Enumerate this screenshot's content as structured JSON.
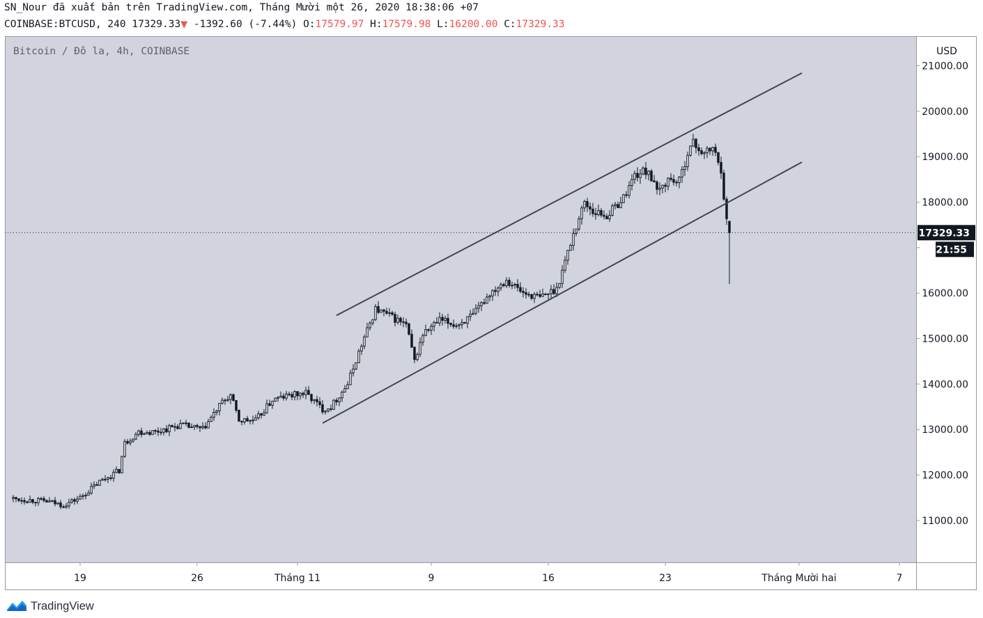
{
  "header": {
    "publisher_line": "SN_Nour đã xuất bản trên TradingView.com, Tháng Mười một 26, 2020 18:38:06 +07",
    "symbol": "COINBASE:BTCUSD, 240",
    "last_price": "17329.33",
    "change": "-1392.60 (-7.44%)",
    "open_label": "O:",
    "open_value": "17579.97",
    "high_label": "H:",
    "high_value": "17579.98",
    "low_label": "L:",
    "low_value": "16200.00",
    "close_label": "C:",
    "close_value": "17329.33"
  },
  "colors": {
    "background": "#d1d4dc",
    "candle": "#131722",
    "channel_line": "#434651",
    "price_text": "#ef5350",
    "axis_text": "#131722"
  },
  "icons": {
    "change_direction": "triangle-down-icon",
    "brand": "tradingview-logo-icon"
  },
  "footer": {
    "brand": "TradingView"
  },
  "chart_data": {
    "type": "candlestick",
    "title": "Bitcoin / Đô la, 4h, COINBASE",
    "currency_label": "USD",
    "ylim": [
      10080,
      21650
    ],
    "y_ticks": [
      11000,
      12000,
      13000,
      14000,
      15000,
      16000,
      17000,
      18000,
      19000,
      20000,
      21000
    ],
    "y_tick_labels": [
      "11000.00",
      "12000.00",
      "13000.00",
      "14000.00",
      "15000.00",
      "16000.00",
      "17000.00",
      "18000.00",
      "19000.00",
      "20000.00",
      "21000.00"
    ],
    "x_ticks": [
      {
        "label": "19",
        "date": "2020-10-19"
      },
      {
        "label": "26",
        "date": "2020-10-26"
      },
      {
        "label": "Tháng 11",
        "date": "2020-11-01"
      },
      {
        "label": "9",
        "date": "2020-11-09"
      },
      {
        "label": "16",
        "date": "2020-11-16"
      },
      {
        "label": "23",
        "date": "2020-11-23"
      },
      {
        "label": "Tháng Mười hai",
        "date": "2020-12-01"
      },
      {
        "label": "7",
        "date": "2020-12-07"
      }
    ],
    "current_price": {
      "value": 17329.33,
      "label": "17329.33",
      "countdown": "21:55"
    },
    "anchors": [
      {
        "date": "2020-10-15 00:00",
        "price": 11480
      },
      {
        "date": "2020-10-17 00:00",
        "price": 11420
      },
      {
        "date": "2020-10-18 00:00",
        "price": 11340
      },
      {
        "date": "2020-10-19 00:00",
        "price": 11500
      },
      {
        "date": "2020-10-20 04:00",
        "price": 11850
      },
      {
        "date": "2020-10-21 08:00",
        "price": 12100
      },
      {
        "date": "2020-10-21 16:00",
        "price": 12700
      },
      {
        "date": "2020-10-22 12:00",
        "price": 12950
      },
      {
        "date": "2020-10-23 12:00",
        "price": 12950
      },
      {
        "date": "2020-10-25 00:00",
        "price": 13100
      },
      {
        "date": "2020-10-26 08:00",
        "price": 13000
      },
      {
        "date": "2020-10-27 12:00",
        "price": 13600
      },
      {
        "date": "2020-10-28 00:00",
        "price": 13750
      },
      {
        "date": "2020-10-28 12:00",
        "price": 13200
      },
      {
        "date": "2020-10-29 12:00",
        "price": 13200
      },
      {
        "date": "2020-10-30 12:00",
        "price": 13650
      },
      {
        "date": "2020-10-31 12:00",
        "price": 13750
      },
      {
        "date": "2020-11-01 12:00",
        "price": 13800
      },
      {
        "date": "2020-11-02 12:00",
        "price": 13450
      },
      {
        "date": "2020-11-03 00:00",
        "price": 13500
      },
      {
        "date": "2020-11-04 00:00",
        "price": 14000
      },
      {
        "date": "2020-11-04 16:00",
        "price": 14700
      },
      {
        "date": "2020-11-05 16:00",
        "price": 15650
      },
      {
        "date": "2020-11-06 12:00",
        "price": 15500
      },
      {
        "date": "2020-11-07 12:00",
        "price": 15300
      },
      {
        "date": "2020-11-08 00:00",
        "price": 14500
      },
      {
        "date": "2020-11-08 12:00",
        "price": 15100
      },
      {
        "date": "2020-11-09 12:00",
        "price": 15400
      },
      {
        "date": "2020-11-10 12:00",
        "price": 15300
      },
      {
        "date": "2020-11-11 12:00",
        "price": 15500
      },
      {
        "date": "2020-11-12 12:00",
        "price": 16000
      },
      {
        "date": "2020-11-13 12:00",
        "price": 16300
      },
      {
        "date": "2020-11-14 12:00",
        "price": 16000
      },
      {
        "date": "2020-11-15 12:00",
        "price": 15900
      },
      {
        "date": "2020-11-16 12:00",
        "price": 16100
      },
      {
        "date": "2020-11-17 00:00",
        "price": 16700
      },
      {
        "date": "2020-11-17 12:00",
        "price": 17300
      },
      {
        "date": "2020-11-18 04:00",
        "price": 18000
      },
      {
        "date": "2020-11-18 16:00",
        "price": 17800
      },
      {
        "date": "2020-11-19 12:00",
        "price": 17700
      },
      {
        "date": "2020-11-20 12:00",
        "price": 18100
      },
      {
        "date": "2020-11-21 04:00",
        "price": 18600
      },
      {
        "date": "2020-11-22 00:00",
        "price": 18700
      },
      {
        "date": "2020-11-22 12:00",
        "price": 18200
      },
      {
        "date": "2020-11-23 04:00",
        "price": 18500
      },
      {
        "date": "2020-11-23 20:00",
        "price": 18450
      },
      {
        "date": "2020-11-24 08:00",
        "price": 19100
      },
      {
        "date": "2020-11-24 16:00",
        "price": 19300
      },
      {
        "date": "2020-11-25 08:00",
        "price": 19050
      },
      {
        "date": "2020-11-25 20:00",
        "price": 19200
      },
      {
        "date": "2020-11-26 08:00",
        "price": 18720
      },
      {
        "date": "2020-11-26 16:00",
        "price": 17580
      },
      {
        "date": "2020-11-26 20:00",
        "price": 17329
      }
    ],
    "channel_lines": [
      {
        "name": "upper",
        "start": {
          "date": "2020-11-03 08:00",
          "price": 15510
        },
        "end": {
          "date": "2020-12-01 04:00",
          "price": 20840
        }
      },
      {
        "name": "lower",
        "start": {
          "date": "2020-11-02 12:00",
          "price": 13140
        },
        "end": {
          "date": "2020-12-01 04:00",
          "price": 18880
        }
      }
    ]
  }
}
